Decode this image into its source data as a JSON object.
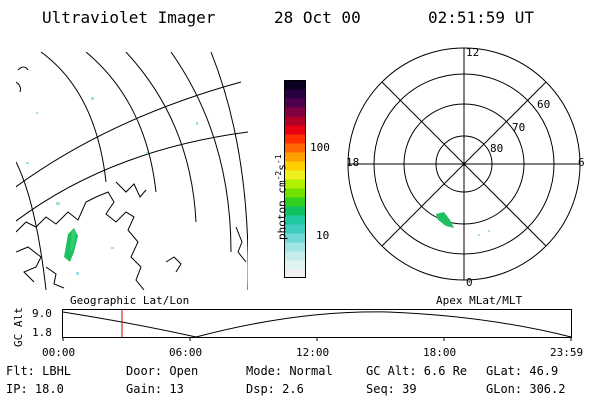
{
  "header": {
    "title": "Ultraviolet Imager",
    "date": "28 Oct 00",
    "time": "02:51:59 UT"
  },
  "colorbar": {
    "label": "photon cm",
    "label_sup1": "-2",
    "label_s": "s",
    "label_sup2": "-1",
    "tick_high": "100",
    "tick_low": "10",
    "colors": [
      "#f0f0f0",
      "#dff3f3",
      "#c4ecec",
      "#a0e4e4",
      "#70d8d8",
      "#40ccc0",
      "#20c8a0",
      "#10c060",
      "#30d020",
      "#70e000",
      "#b0f000",
      "#f0f020",
      "#ffd000",
      "#ffa000",
      "#ff6800",
      "#ff3000",
      "#e80010",
      "#b00028",
      "#800040",
      "#500050",
      "#280040",
      "#0a0020"
    ]
  },
  "polar": {
    "mlt_top": "12",
    "mlt_bottom": "0",
    "mlt_left": "18",
    "mlt_right": "6",
    "lat_labels": [
      "60",
      "70",
      "80"
    ]
  },
  "left_label": "Geographic Lat/Lon",
  "right_label": "Apex MLat/MLT",
  "altplot": {
    "ylabel": "GC Alt",
    "ymax": "9.0",
    "ymin": "1.8",
    "xticks": [
      "00:00",
      "06:00",
      "12:00",
      "18:00",
      "23:59"
    ]
  },
  "info": {
    "flt": "Flt: LBHL",
    "door": "Door: Open",
    "mode": "Mode: Normal",
    "gcalt": "GC Alt: 6.6 Re",
    "glat": "GLat:  46.9",
    "ip": "IP: 18.0",
    "gain": "Gain: 13",
    "dsp": "Dsp:    2.6",
    "seq": "Seq: 39",
    "glon": "GLon: 306.2"
  }
}
